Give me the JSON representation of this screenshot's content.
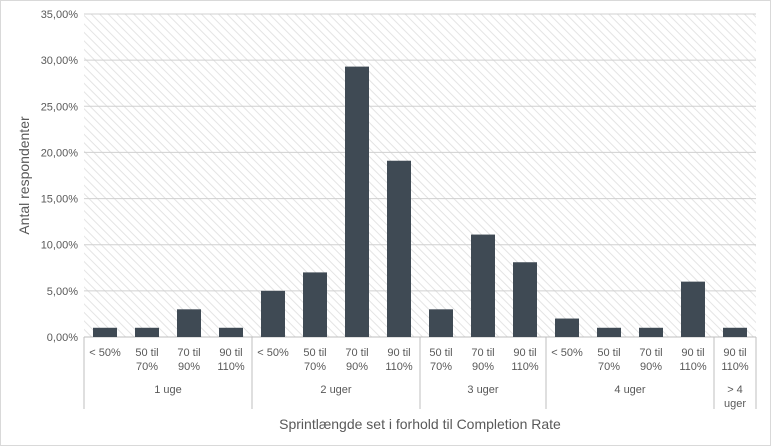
{
  "chart_data": {
    "type": "bar",
    "title": "",
    "xlabel": "Sprintlængde set i forhold til Completion Rate",
    "ylabel": "Antal respondenter",
    "ylim": [
      0,
      35
    ],
    "yticks": [
      "0,00%",
      "5,00%",
      "10,00%",
      "15,00%",
      "20,00%",
      "25,00%",
      "30,00%",
      "35,00%"
    ],
    "grid": true,
    "legend": "none",
    "bar_color": "#3f4a54",
    "groups": [
      {
        "label": "1 uge",
        "categories": [
          [
            "< 50%"
          ],
          [
            "50 til",
            "70%"
          ],
          [
            "70 til",
            "90%"
          ],
          [
            "90 til",
            "110%"
          ]
        ],
        "values": [
          1,
          1,
          3,
          1
        ]
      },
      {
        "label": "2 uger",
        "categories": [
          [
            "< 50%"
          ],
          [
            "50 til",
            "70%"
          ],
          [
            "70 til",
            "90%"
          ],
          [
            "90 til",
            "110%"
          ]
        ],
        "values": [
          5,
          7,
          29.3,
          19.1
        ]
      },
      {
        "label": "3 uger",
        "categories": [
          [
            "50 til",
            "70%"
          ],
          [
            "70 til",
            "90%"
          ],
          [
            "90 til",
            "110%"
          ]
        ],
        "values": [
          3,
          11.1,
          8.1
        ]
      },
      {
        "label": "4 uger",
        "categories": [
          [
            "< 50%"
          ],
          [
            "50 til",
            "70%"
          ],
          [
            "70 til",
            "90%"
          ],
          [
            "90 til",
            "110%"
          ]
        ],
        "values": [
          2,
          1,
          1,
          6
        ]
      },
      {
        "label": [
          "> 4",
          "uger"
        ],
        "categories": [
          [
            "90 til",
            "110%"
          ]
        ],
        "values": [
          1
        ]
      }
    ]
  }
}
